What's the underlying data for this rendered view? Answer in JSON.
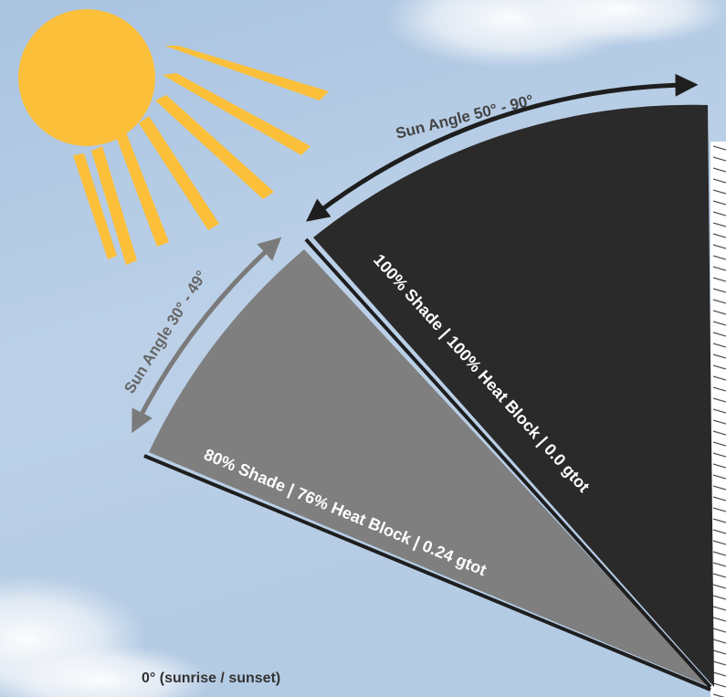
{
  "zones": [
    {
      "angle_label": "Sun Angle 50° - 90°",
      "shade_label": "100% Shade | 100% Heat Block | 0.0 gtot",
      "color": "#2a2a2a"
    },
    {
      "angle_label": "Sun Angle 30° - 49°",
      "shade_label": "80% Shade | 76% Heat Block | 0.24 gtot",
      "color": "#7f7f7f"
    }
  ],
  "horizon_label": "0° (sunrise / sunset)",
  "colors": {
    "sky": "#b9cfe6",
    "sun": "#fbbf3a",
    "wall": "#555555"
  },
  "icons": {
    "sun": "sun-icon"
  }
}
